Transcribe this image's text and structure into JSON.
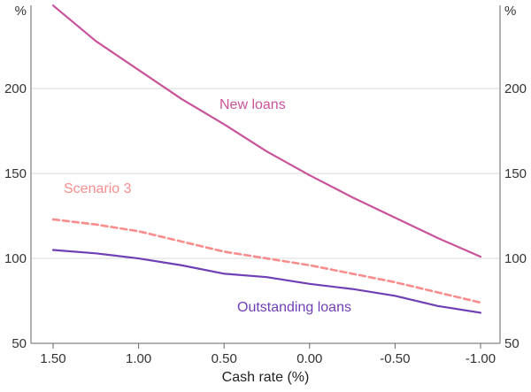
{
  "chart_data": {
    "type": "line",
    "title": "",
    "xlabel": "Cash rate (%)",
    "ylabel": "%",
    "y_unit": "%",
    "xlim": [
      1.5,
      -1.0
    ],
    "ylim": [
      50,
      247
    ],
    "grid": true,
    "legend": "inline-labels",
    "x": [
      1.5,
      1.25,
      1.0,
      0.75,
      0.5,
      0.25,
      0.0,
      -0.25,
      -0.5,
      -0.75,
      -1.0
    ],
    "series": [
      {
        "name": "New loans",
        "color": "#c9539a",
        "dashed": false,
        "values": [
          249,
          228,
          211,
          194,
          179,
          163,
          149,
          136,
          124,
          112,
          101
        ]
      },
      {
        "name": "Scenario 3",
        "color": "#f98d8d",
        "dashed": true,
        "values": [
          123,
          120,
          116,
          110,
          104,
          100,
          96,
          91,
          86,
          80,
          74
        ]
      },
      {
        "name": "Outstanding loans",
        "color": "#6f3fb5",
        "dashed": false,
        "values": [
          105,
          103,
          100,
          96,
          91,
          89,
          85,
          82,
          78,
          72,
          68
        ]
      }
    ],
    "xticks": {
      "values": [
        1.5,
        1.0,
        0.5,
        0.0,
        -0.5,
        -1.0
      ],
      "labels": [
        "1.50",
        "1.00",
        "0.50",
        "0.00",
        "-0.50",
        "-1.00"
      ]
    },
    "yticks": [
      50,
      100,
      150,
      200
    ],
    "gridlines": [
      100,
      150,
      200
    ]
  },
  "colors": {
    "axis": "#666666",
    "grid": "#d9d9d9",
    "text": "#333333"
  }
}
